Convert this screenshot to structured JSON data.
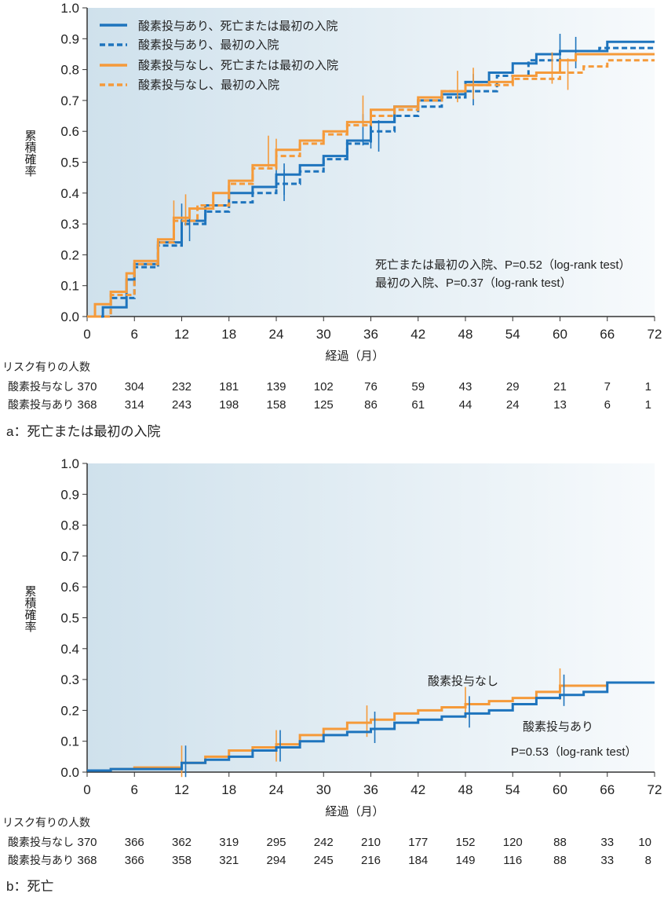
{
  "colors": {
    "with_oxygen": "#1e74bd",
    "without_oxygen": "#f59a3a"
  },
  "chart_data": [
    {
      "type": "line",
      "panel_label": "a：死亡または最初の入院",
      "xlabel": "経過（月）",
      "ylabel": "累積確率",
      "xlim": [
        0,
        72
      ],
      "ylim": [
        0,
        1
      ],
      "x_ticks": [
        0,
        6,
        12,
        18,
        24,
        30,
        36,
        42,
        48,
        54,
        60,
        66,
        72
      ],
      "y_ticks": [
        "0.0",
        "0.1",
        "0.2",
        "0.3",
        "0.4",
        "0.5",
        "0.6",
        "0.7",
        "0.8",
        "0.9",
        "1.0"
      ],
      "legend_position": "top-left",
      "series": [
        {
          "name": "酸素投与あり、死亡または最初の入院",
          "color_key": "with_oxygen",
          "dash": false,
          "points": [
            [
              0,
              0
            ],
            [
              2,
              0.03
            ],
            [
              5,
              0.12
            ],
            [
              6,
              0.17
            ],
            [
              9,
              0.24
            ],
            [
              12,
              0.31
            ],
            [
              15,
              0.36
            ],
            [
              18,
              0.4
            ],
            [
              21,
              0.42
            ],
            [
              24,
              0.46
            ],
            [
              27,
              0.49
            ],
            [
              30,
              0.52
            ],
            [
              33,
              0.57
            ],
            [
              36,
              0.63
            ],
            [
              39,
              0.68
            ],
            [
              42,
              0.7
            ],
            [
              45,
              0.72
            ],
            [
              48,
              0.76
            ],
            [
              51,
              0.79
            ],
            [
              54,
              0.82
            ],
            [
              57,
              0.85
            ],
            [
              60,
              0.86
            ],
            [
              66,
              0.89
            ],
            [
              72,
              0.89
            ]
          ],
          "censor": [
            [
              12,
              0.31
            ],
            [
              13,
              0.29
            ],
            [
              24,
              0.46
            ],
            [
              25,
              0.44
            ],
            [
              35,
              0.6
            ],
            [
              37,
              0.58
            ],
            [
              49,
              0.73
            ],
            [
              60,
              0.86
            ],
            [
              62,
              0.85
            ]
          ]
        },
        {
          "name": "酸素投与あり、最初の入院",
          "color_key": "with_oxygen",
          "dash": true,
          "points": [
            [
              0,
              0
            ],
            [
              3,
              0.06
            ],
            [
              6,
              0.16
            ],
            [
              9,
              0.23
            ],
            [
              12,
              0.3
            ],
            [
              15,
              0.34
            ],
            [
              18,
              0.37
            ],
            [
              21,
              0.4
            ],
            [
              24,
              0.43
            ],
            [
              27,
              0.47
            ],
            [
              30,
              0.51
            ],
            [
              33,
              0.56
            ],
            [
              36,
              0.6
            ],
            [
              39,
              0.65
            ],
            [
              42,
              0.68
            ],
            [
              45,
              0.71
            ],
            [
              48,
              0.73
            ],
            [
              52,
              0.78
            ],
            [
              56,
              0.83
            ],
            [
              60,
              0.86
            ],
            [
              65,
              0.87
            ],
            [
              72,
              0.87
            ]
          ],
          "censor": [
            [
              25,
              0.42
            ],
            [
              36,
              0.59
            ]
          ]
        },
        {
          "name": "酸素投与なし、死亡または最初の入院",
          "color_key": "without_oxygen",
          "dash": false,
          "points": [
            [
              0,
              0
            ],
            [
              1,
              0.04
            ],
            [
              3,
              0.08
            ],
            [
              5,
              0.14
            ],
            [
              6,
              0.18
            ],
            [
              9,
              0.25
            ],
            [
              11,
              0.32
            ],
            [
              13,
              0.35
            ],
            [
              16,
              0.4
            ],
            [
              18,
              0.44
            ],
            [
              21,
              0.49
            ],
            [
              24,
              0.54
            ],
            [
              27,
              0.57
            ],
            [
              30,
              0.6
            ],
            [
              33,
              0.63
            ],
            [
              36,
              0.67
            ],
            [
              39,
              0.68
            ],
            [
              42,
              0.71
            ],
            [
              45,
              0.73
            ],
            [
              48,
              0.75
            ],
            [
              51,
              0.76
            ],
            [
              54,
              0.78
            ],
            [
              57,
              0.79
            ],
            [
              60,
              0.83
            ],
            [
              62,
              0.85
            ],
            [
              72,
              0.85
            ]
          ],
          "censor": [
            [
              11,
              0.32
            ],
            [
              12.5,
              0.34
            ],
            [
              23,
              0.53
            ],
            [
              35,
              0.66
            ],
            [
              47,
              0.74
            ],
            [
              49,
              0.75
            ],
            [
              59,
              0.8
            ],
            [
              61,
              0.78
            ]
          ]
        },
        {
          "name": "酸素投与なし、最初の入院",
          "color_key": "without_oxygen",
          "dash": true,
          "points": [
            [
              0,
              0
            ],
            [
              3,
              0.07
            ],
            [
              6,
              0.17
            ],
            [
              9,
              0.24
            ],
            [
              11,
              0.31
            ],
            [
              14,
              0.36
            ],
            [
              18,
              0.43
            ],
            [
              21,
              0.48
            ],
            [
              24,
              0.52
            ],
            [
              27,
              0.56
            ],
            [
              30,
              0.59
            ],
            [
              33,
              0.62
            ],
            [
              36,
              0.65
            ],
            [
              39,
              0.67
            ],
            [
              42,
              0.7
            ],
            [
              45,
              0.73
            ],
            [
              48,
              0.75
            ],
            [
              54,
              0.77
            ],
            [
              60,
              0.79
            ],
            [
              63,
              0.81
            ],
            [
              66,
              0.83
            ],
            [
              72,
              0.83
            ]
          ],
          "censor": [
            [
              24,
              0.52
            ]
          ]
        }
      ],
      "annotations": [
        "死亡または最初の入院、P=0.52（log-rank test）",
        "最初の入院、P=0.37（log-rank test）"
      ],
      "risk_table": {
        "title": "リスク有りの人数",
        "rows": [
          {
            "label": "酸素投与なし",
            "values": [
              "370",
              "304",
              "232",
              "181",
              "139",
              "102",
              "76",
              "59",
              "43",
              "29",
              "21",
              "7",
              "1"
            ]
          },
          {
            "label": "酸素投与あり",
            "values": [
              "368",
              "314",
              "243",
              "198",
              "158",
              "125",
              "86",
              "61",
              "44",
              "24",
              "13",
              "6",
              "1"
            ]
          }
        ]
      }
    },
    {
      "type": "line",
      "panel_label": "b：死亡",
      "xlabel": "経過（月）",
      "ylabel": "累積確率",
      "xlim": [
        0,
        72
      ],
      "ylim": [
        0,
        1
      ],
      "x_ticks": [
        0,
        6,
        12,
        18,
        24,
        30,
        36,
        42,
        48,
        54,
        60,
        66,
        72
      ],
      "y_ticks": [
        "0.0",
        "0.1",
        "0.2",
        "0.3",
        "0.4",
        "0.5",
        "0.6",
        "0.7",
        "0.8",
        "0.9",
        "1.0"
      ],
      "series": [
        {
          "name": "酸素投与なし",
          "color_key": "without_oxygen",
          "dash": false,
          "points": [
            [
              0,
              0.005
            ],
            [
              3,
              0.01
            ],
            [
              6,
              0.015
            ],
            [
              12,
              0.03
            ],
            [
              15,
              0.05
            ],
            [
              18,
              0.07
            ],
            [
              21,
              0.08
            ],
            [
              24,
              0.09
            ],
            [
              27,
              0.12
            ],
            [
              30,
              0.14
            ],
            [
              33,
              0.16
            ],
            [
              36,
              0.17
            ],
            [
              39,
              0.19
            ],
            [
              42,
              0.2
            ],
            [
              45,
              0.21
            ],
            [
              48,
              0.22
            ],
            [
              51,
              0.23
            ],
            [
              54,
              0.24
            ],
            [
              57,
              0.26
            ],
            [
              60,
              0.28
            ],
            [
              66,
              0.29
            ],
            [
              72,
              0.29
            ]
          ],
          "censor": [
            [
              12,
              0.03
            ],
            [
              24,
              0.08
            ],
            [
              35.5,
              0.16
            ],
            [
              48,
              0.22
            ],
            [
              60,
              0.28
            ]
          ]
        },
        {
          "name": "酸素投与あり",
          "color_key": "with_oxygen",
          "dash": false,
          "points": [
            [
              0,
              0.005
            ],
            [
              3,
              0.01
            ],
            [
              6,
              0.01
            ],
            [
              12,
              0.03
            ],
            [
              15,
              0.04
            ],
            [
              18,
              0.05
            ],
            [
              21,
              0.07
            ],
            [
              24,
              0.08
            ],
            [
              27,
              0.1
            ],
            [
              30,
              0.12
            ],
            [
              33,
              0.13
            ],
            [
              36,
              0.14
            ],
            [
              39,
              0.16
            ],
            [
              42,
              0.17
            ],
            [
              45,
              0.18
            ],
            [
              48,
              0.19
            ],
            [
              51,
              0.2
            ],
            [
              54,
              0.22
            ],
            [
              57,
              0.24
            ],
            [
              60,
              0.25
            ],
            [
              63,
              0.26
            ],
            [
              66,
              0.29
            ],
            [
              72,
              0.29
            ]
          ],
          "censor": [
            [
              12.5,
              0.03
            ],
            [
              24.5,
              0.08
            ],
            [
              36.5,
              0.14
            ],
            [
              48.5,
              0.19
            ],
            [
              60.5,
              0.26
            ]
          ]
        }
      ],
      "series_labels": [
        "酸素投与なし",
        "酸素投与あり"
      ],
      "annotations": [
        "P=0.53（log-rank test）"
      ],
      "risk_table": {
        "title": "リスク有りの人数",
        "rows": [
          {
            "label": "酸素投与なし",
            "values": [
              "370",
              "366",
              "362",
              "319",
              "295",
              "242",
              "210",
              "177",
              "152",
              "120",
              "88",
              "33",
              "10"
            ]
          },
          {
            "label": "酸素投与あり",
            "values": [
              "368",
              "366",
              "358",
              "321",
              "294",
              "245",
              "216",
              "184",
              "149",
              "116",
              "88",
              "33",
              "8"
            ]
          }
        ]
      }
    }
  ]
}
